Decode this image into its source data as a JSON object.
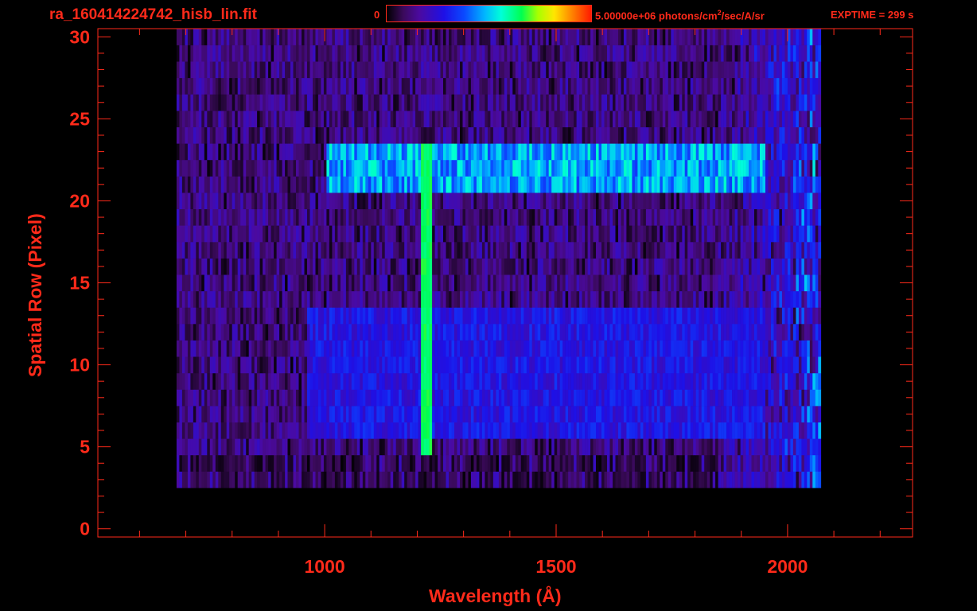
{
  "header": {
    "file_title": "ra_160414224742_hisb_lin.fit",
    "colorbar_min": "0",
    "colorbar_max_prefix": "5.00000e+06 photons/cm",
    "colorbar_max_exp": "2",
    "colorbar_max_suffix": "/sec/A/sr",
    "exptime": "EXPTIME = 299 s"
  },
  "colors": {
    "text": "#ff2a1a",
    "background": "#000000"
  },
  "chart_data": {
    "type": "heatmap",
    "title": "ra_160414224742_hisb_lin.fit",
    "xlabel": "Wavelength (Å)",
    "ylabel": "Spatial Row (Pixel)",
    "xlim": [
      510,
      2270
    ],
    "ylim": [
      -0.5,
      30.5
    ],
    "x_ticks": [
      1000,
      1500,
      2000
    ],
    "y_ticks": [
      0,
      5,
      10,
      15,
      20,
      25,
      30
    ],
    "colorbar": {
      "min": 0,
      "max": 5000000,
      "unit": "photons/cm^2/sec/A/sr",
      "colormap": "rainbow"
    },
    "data_extent": {
      "x": [
        680,
        2070
      ],
      "rows": [
        3,
        30
      ]
    },
    "features": [
      {
        "name": "emission line",
        "wavelength": 1216,
        "rows": [
          5,
          23
        ],
        "level": 0.62
      },
      {
        "name": "bright band",
        "rows": [
          21,
          23
        ],
        "wavelength_range": [
          1000,
          1950
        ],
        "level": 0.5
      },
      {
        "name": "band",
        "rows": [
          6,
          13
        ],
        "wavelength_range": [
          960,
          1950
        ],
        "level": 0.3
      }
    ]
  }
}
